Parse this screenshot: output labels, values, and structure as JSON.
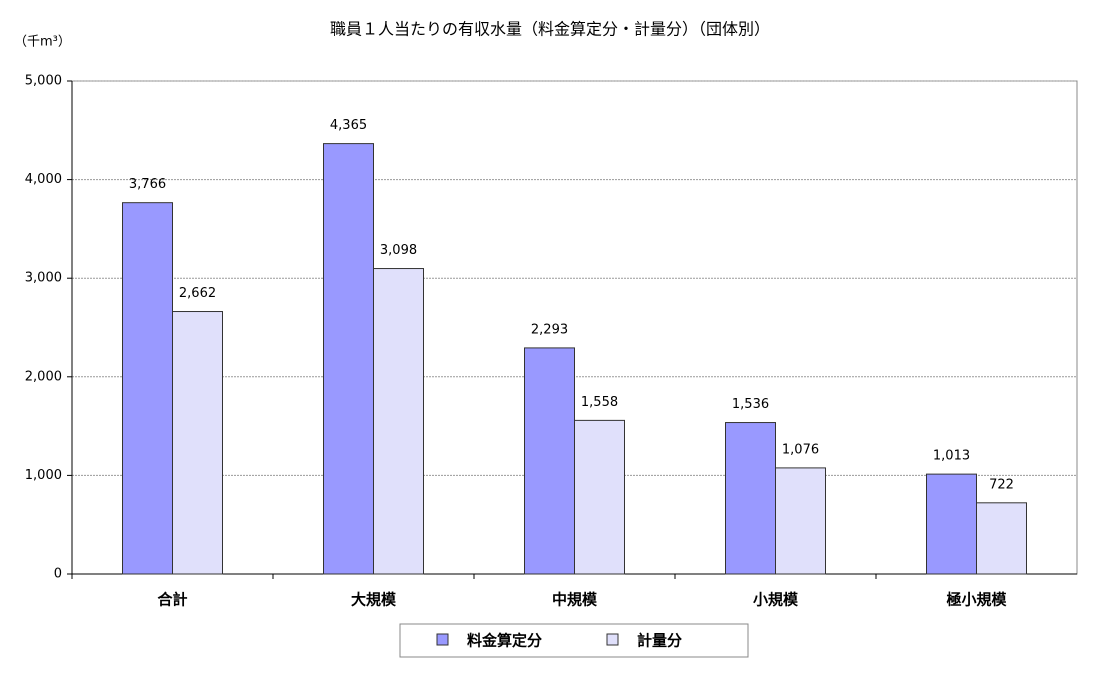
{
  "chart_data": {
    "type": "bar",
    "title": "職員１人当たりの有収水量（料金算定分・計量分）（団体別）",
    "y_label": "（千m³）",
    "categories": [
      "合計",
      "大規模",
      "中規模",
      "小規模",
      "極小規模"
    ],
    "series": [
      {
        "name": "料金算定分",
        "color": "#9999ff",
        "values": [
          3766,
          4365,
          2293,
          1536,
          1013
        ],
        "value_labels": [
          "3,766",
          "4,365",
          "2,293",
          "1,536",
          "1,013"
        ]
      },
      {
        "name": "計量分",
        "color": "#e0e0fb",
        "values": [
          2662,
          3098,
          1558,
          1076,
          722
        ],
        "value_labels": [
          "2,662",
          "3,098",
          "1,558",
          "1,076",
          "722"
        ]
      }
    ],
    "ylim": [
      0,
      5000
    ],
    "yticks": [
      0,
      {
        "value": 1000,
        "label": "1,000"
      },
      {
        "value": 2000,
        "label": "2,000"
      },
      {
        "value": 3000,
        "label": "3,000"
      },
      {
        "value": 4000,
        "label": "4,000"
      },
      {
        "value": 5000,
        "label": "5,000"
      }
    ],
    "grid": true,
    "legend": "bottom"
  }
}
